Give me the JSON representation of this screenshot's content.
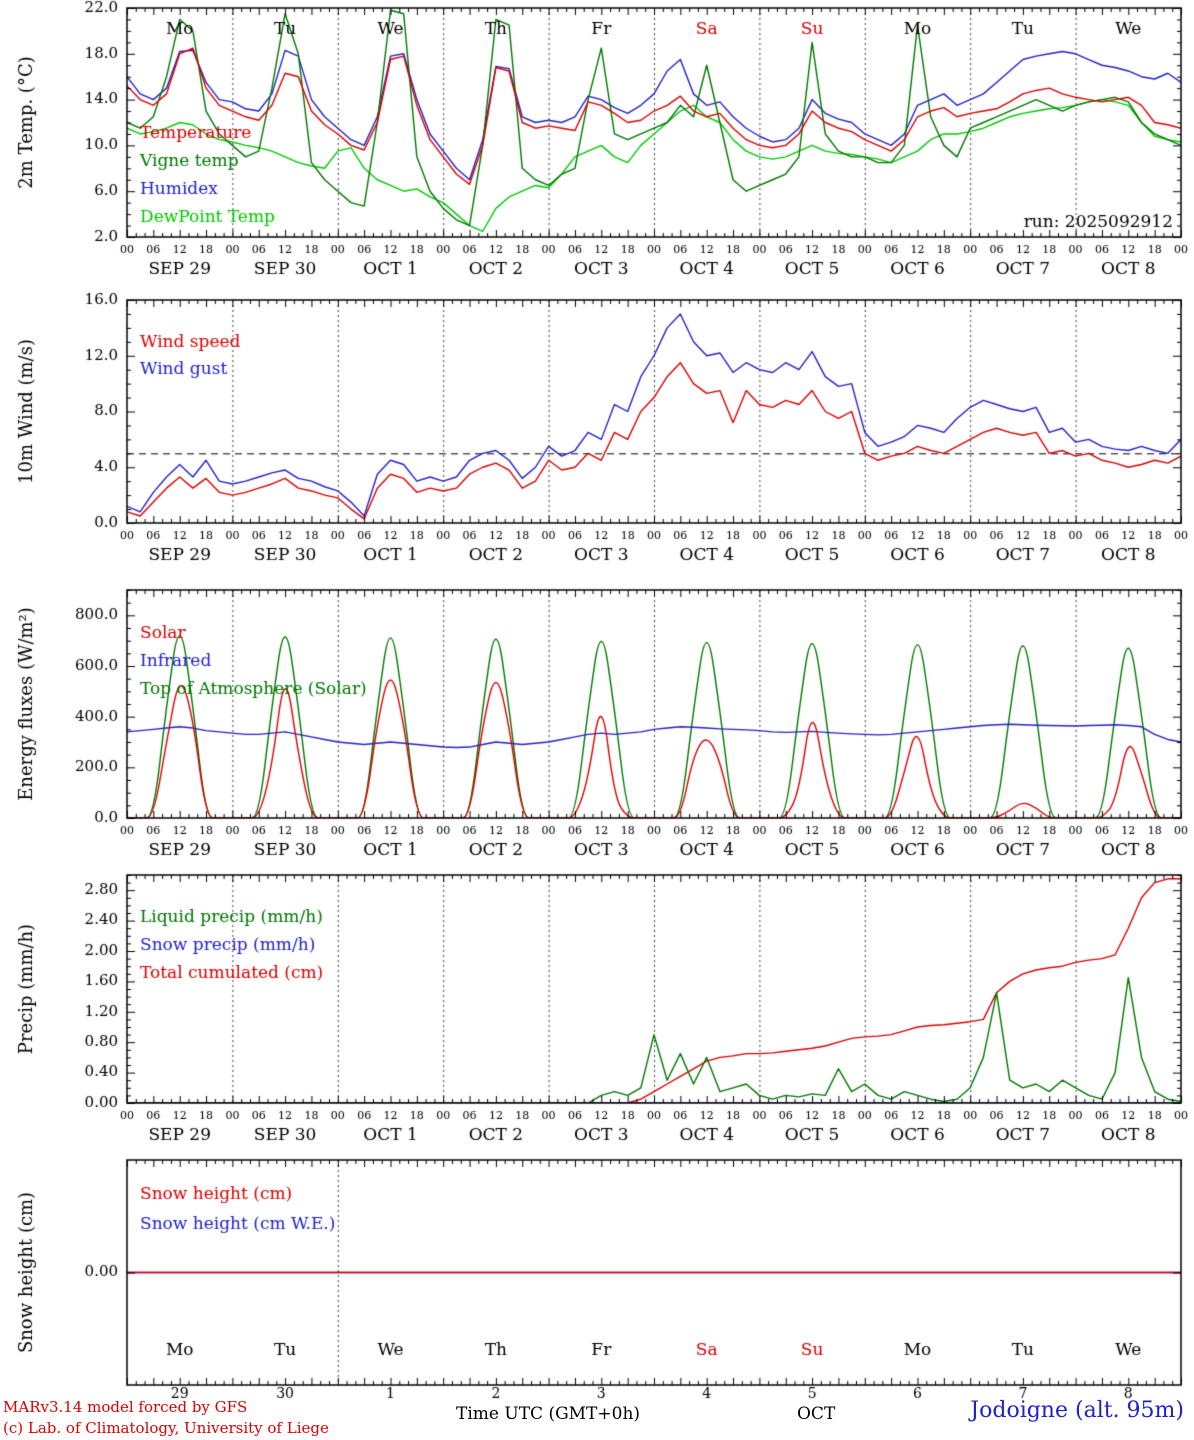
{
  "footer": {
    "model_line1": "MARv3.14 model forced by GFS",
    "model_line2": "(c) Lab. of Climatology, University of Liege",
    "time_axis_label": "Time UTC (GMT+0h)",
    "month_label": "OCT",
    "station_label": "Jodoigne (alt. 95m)"
  },
  "colors": {
    "red": "#dd0000",
    "blue": "#2222cc",
    "dark_green": "#007700",
    "light_green": "#00cc00",
    "black": "#000000",
    "weekend": "#dd0000"
  },
  "x_axis": {
    "step_hours": 3,
    "total_hours": 240,
    "hour_tick_interval": 6,
    "hour_labels": [
      "00",
      "06",
      "12",
      "18"
    ],
    "day_labels": [
      "SEP 29",
      "SEP 30",
      "OCT 1",
      "OCT 2",
      "OCT 3",
      "OCT 4",
      "OCT 5",
      "OCT 6",
      "OCT 7",
      "OCT 8"
    ],
    "day_names": [
      {
        "label": "Mo",
        "weekend": false
      },
      {
        "label": "Tu",
        "weekend": false
      },
      {
        "label": "We",
        "weekend": false
      },
      {
        "label": "Th",
        "weekend": false
      },
      {
        "label": "Fr",
        "weekend": false
      },
      {
        "label": "Sa",
        "weekend": true
      },
      {
        "label": "Su",
        "weekend": true
      },
      {
        "label": "Mo",
        "weekend": false
      },
      {
        "label": "Tu",
        "weekend": false
      },
      {
        "label": "We",
        "weekend": false
      }
    ],
    "day_numbers": [
      "29",
      "30",
      "1",
      "2",
      "3",
      "4",
      "5",
      "6",
      "7",
      "8"
    ]
  },
  "chart_data": [
    {
      "name": "temperature-panel",
      "type": "line",
      "ylabel": "2m Temp. (°C)",
      "ylim": [
        2,
        22
      ],
      "ytick_major": 4,
      "ytick_minor": 1,
      "ytick_decimals": 1,
      "day_gridlines": "all",
      "run_label": "run: 2025092912",
      "series": [
        {
          "name": "Temperature",
          "color": "#dd0000",
          "values": [
            15.2,
            14.0,
            13.5,
            14.5,
            18.0,
            18.5,
            15.0,
            13.5,
            13.0,
            12.5,
            12.2,
            13.5,
            16.3,
            16.0,
            13.0,
            11.8,
            11.0,
            10.0,
            9.6,
            12.0,
            17.5,
            17.8,
            13.5,
            10.5,
            9.0,
            7.5,
            6.6,
            10.0,
            16.8,
            16.5,
            12.0,
            11.5,
            11.7,
            11.5,
            11.3,
            13.8,
            13.5,
            12.8,
            12.0,
            12.2,
            13.0,
            13.5,
            14.3,
            13.0,
            12.5,
            12.8,
            11.5,
            10.5,
            10.0,
            9.8,
            10.0,
            11.0,
            13.0,
            12.0,
            11.5,
            11.2,
            10.5,
            10.0,
            9.5,
            10.5,
            12.5,
            13.0,
            13.3,
            12.5,
            12.8,
            13.0,
            13.2,
            13.8,
            14.5,
            14.8,
            15.0,
            14.5,
            14.2,
            14.0,
            13.8,
            14.0,
            14.2,
            13.5,
            12.0,
            11.8,
            11.5
          ]
        },
        {
          "name": "Vigne temp",
          "color": "#007700",
          "values": [
            12.0,
            11.5,
            12.5,
            16.0,
            21.0,
            20.0,
            13.0,
            11.0,
            10.0,
            9.0,
            9.5,
            15.0,
            21.5,
            18.0,
            8.5,
            7.0,
            6.0,
            5.0,
            4.7,
            12.0,
            21.8,
            21.5,
            9.0,
            6.0,
            4.5,
            3.5,
            3.0,
            10.0,
            21.0,
            20.5,
            8.0,
            7.0,
            6.5,
            7.5,
            8.0,
            14.0,
            18.5,
            11.0,
            10.5,
            11.0,
            11.5,
            12.0,
            13.5,
            12.5,
            17.0,
            12.0,
            7.0,
            6.0,
            6.5,
            7.0,
            7.5,
            9.0,
            19.0,
            11.0,
            9.5,
            9.0,
            9.0,
            8.5,
            8.5,
            10.0,
            20.5,
            12.5,
            10.0,
            9.0,
            11.5,
            12.0,
            12.5,
            13.0,
            13.5,
            14.0,
            13.5,
            13.0,
            13.5,
            13.8,
            14.0,
            14.2,
            13.8,
            12.0,
            11.0,
            10.5,
            10.0
          ]
        },
        {
          "name": "Humidex",
          "color": "#2222cc",
          "values": [
            16.0,
            14.5,
            14.0,
            15.0,
            18.2,
            18.3,
            15.5,
            14.0,
            13.8,
            13.2,
            13.0,
            14.5,
            18.3,
            17.8,
            14.0,
            12.5,
            11.5,
            10.5,
            10.0,
            12.5,
            17.8,
            18.0,
            14.0,
            11.0,
            9.5,
            8.0,
            7.0,
            10.5,
            16.9,
            16.7,
            12.5,
            12.0,
            12.2,
            12.0,
            12.5,
            14.3,
            14.0,
            13.3,
            12.8,
            13.5,
            14.5,
            16.5,
            17.5,
            14.5,
            13.5,
            13.8,
            12.5,
            11.5,
            10.8,
            10.3,
            10.5,
            11.5,
            14.0,
            12.8,
            12.3,
            12.0,
            11.0,
            10.5,
            10.0,
            11.0,
            13.5,
            14.0,
            14.5,
            13.5,
            14.0,
            14.5,
            15.5,
            16.5,
            17.5,
            17.8,
            18.0,
            18.2,
            18.0,
            17.5,
            17.0,
            16.8,
            16.5,
            16.0,
            15.8,
            16.3,
            15.5
          ]
        },
        {
          "name": "DewPoint Temp",
          "color": "#00cc00",
          "values": [
            11.5,
            11.0,
            11.2,
            11.5,
            12.0,
            11.8,
            11.0,
            10.5,
            10.3,
            10.0,
            9.8,
            9.5,
            9.0,
            8.5,
            8.2,
            8.0,
            9.5,
            9.8,
            8.0,
            7.0,
            6.5,
            6.0,
            6.2,
            5.5,
            5.0,
            4.0,
            3.0,
            2.5,
            4.5,
            5.5,
            6.0,
            6.5,
            6.3,
            7.5,
            9.0,
            9.5,
            10.0,
            9.0,
            8.5,
            10.0,
            11.0,
            12.0,
            13.0,
            13.5,
            12.5,
            12.0,
            10.5,
            9.5,
            9.0,
            8.8,
            9.0,
            9.5,
            10.0,
            9.5,
            9.3,
            9.2,
            9.0,
            8.8,
            8.5,
            9.0,
            9.5,
            10.5,
            11.0,
            11.0,
            11.2,
            11.5,
            12.0,
            12.5,
            12.8,
            13.0,
            13.2,
            13.3,
            13.5,
            13.8,
            14.0,
            13.8,
            13.5,
            12.0,
            10.8,
            10.5,
            10.3
          ]
        }
      ]
    },
    {
      "name": "wind-panel",
      "type": "line",
      "ylabel": "10m Wind (m/s)",
      "ylim": [
        0,
        16
      ],
      "ytick_major": 4,
      "ytick_minor": 1,
      "ytick_decimals": 1,
      "day_gridlines": "all",
      "hline": 5.0,
      "series": [
        {
          "name": "Wind speed",
          "color": "#dd0000",
          "values": [
            0.8,
            0.5,
            1.5,
            2.5,
            3.3,
            2.5,
            3.2,
            2.2,
            2.0,
            2.2,
            2.5,
            2.8,
            3.2,
            2.5,
            2.3,
            2.0,
            1.8,
            1.0,
            0.3,
            2.5,
            3.5,
            3.2,
            2.2,
            2.5,
            2.3,
            2.5,
            3.5,
            4.0,
            4.3,
            3.8,
            2.5,
            3.0,
            4.5,
            3.8,
            4.0,
            5.0,
            4.5,
            6.5,
            6.0,
            8.0,
            9.0,
            10.5,
            11.5,
            10.0,
            9.3,
            9.5,
            7.2,
            9.5,
            8.5,
            8.3,
            8.8,
            8.5,
            9.5,
            8.0,
            7.5,
            8.0,
            5.0,
            4.5,
            4.8,
            5.0,
            5.5,
            5.2,
            5.0,
            5.5,
            6.0,
            6.5,
            6.8,
            6.5,
            6.3,
            6.5,
            5.0,
            5.2,
            4.8,
            5.0,
            4.5,
            4.3,
            4.0,
            4.2,
            4.5,
            4.3,
            4.8
          ]
        },
        {
          "name": "Wind gust",
          "color": "#2222cc",
          "values": [
            1.2,
            0.8,
            2.2,
            3.3,
            4.2,
            3.3,
            4.5,
            3.0,
            2.8,
            3.0,
            3.3,
            3.6,
            3.8,
            3.2,
            3.0,
            2.6,
            2.3,
            1.5,
            0.5,
            3.5,
            4.5,
            4.2,
            3.0,
            3.3,
            3.0,
            3.3,
            4.5,
            5.0,
            5.2,
            4.5,
            3.2,
            4.0,
            5.5,
            4.8,
            5.2,
            6.5,
            6.0,
            8.5,
            8.0,
            10.5,
            12.0,
            14.0,
            15.0,
            13.0,
            12.0,
            12.2,
            10.8,
            11.5,
            11.0,
            10.8,
            11.5,
            11.0,
            12.3,
            10.5,
            9.8,
            10.0,
            6.5,
            5.5,
            5.8,
            6.2,
            7.0,
            6.8,
            6.5,
            7.5,
            8.3,
            8.8,
            8.5,
            8.2,
            8.0,
            8.3,
            6.5,
            6.8,
            5.8,
            6.0,
            5.5,
            5.3,
            5.2,
            5.5,
            5.2,
            5.0,
            6.0
          ]
        }
      ]
    },
    {
      "name": "energy-panel",
      "type": "line",
      "ylabel": "Energy fluxes (W/m²)",
      "ylim": [
        0,
        900
      ],
      "ytick_major": 200,
      "ytick_minor": 50,
      "ytick_decimals": 1,
      "day_gridlines": "all",
      "series": [
        {
          "name": "Solar",
          "color": "#dd0000",
          "smooth": true,
          "values": [
            0,
            0,
            0,
            300,
            575,
            400,
            0,
            0,
            0,
            0,
            0,
            200,
            605,
            250,
            0,
            0,
            0,
            0,
            0,
            380,
            600,
            380,
            0,
            0,
            0,
            0,
            0,
            370,
            590,
            370,
            0,
            0,
            0,
            0,
            0,
            150,
            495,
            80,
            0,
            0,
            0,
            0,
            0,
            250,
            330,
            230,
            0,
            0,
            0,
            0,
            0,
            100,
            460,
            150,
            0,
            0,
            0,
            0,
            0,
            180,
            380,
            100,
            0,
            0,
            0,
            0,
            0,
            30,
            65,
            40,
            0,
            0,
            0,
            0,
            0,
            60,
            330,
            180,
            0,
            0,
            0
          ]
        },
        {
          "name": "Infrared",
          "color": "#2222cc",
          "values": [
            340,
            345,
            350,
            355,
            360,
            355,
            345,
            340,
            335,
            330,
            330,
            335,
            340,
            330,
            320,
            310,
            300,
            295,
            290,
            295,
            300,
            295,
            290,
            285,
            280,
            278,
            280,
            290,
            300,
            295,
            290,
            295,
            300,
            310,
            320,
            330,
            335,
            330,
            335,
            340,
            350,
            355,
            360,
            358,
            355,
            352,
            350,
            348,
            345,
            340,
            338,
            340,
            342,
            338,
            335,
            332,
            330,
            328,
            330,
            335,
            340,
            345,
            350,
            355,
            360,
            365,
            368,
            370,
            368,
            366,
            365,
            364,
            363,
            365,
            366,
            368,
            365,
            360,
            330,
            310,
            300
          ]
        },
        {
          "name": "Top of Atmosphere (Solar)",
          "color": "#007700",
          "smooth": true,
          "values": [
            0,
            0,
            0,
            445,
            810,
            445,
            0,
            0,
            0,
            0,
            0,
            443,
            805,
            443,
            0,
            0,
            0,
            0,
            0,
            440,
            800,
            440,
            0,
            0,
            0,
            0,
            0,
            437,
            795,
            437,
            0,
            0,
            0,
            0,
            0,
            432,
            785,
            432,
            0,
            0,
            0,
            0,
            0,
            429,
            780,
            429,
            0,
            0,
            0,
            0,
            0,
            426,
            775,
            426,
            0,
            0,
            0,
            0,
            0,
            424,
            770,
            424,
            0,
            0,
            0,
            0,
            0,
            421,
            765,
            421,
            0,
            0,
            0,
            0,
            0,
            415,
            755,
            415,
            0,
            0,
            0
          ]
        }
      ]
    },
    {
      "name": "precip-panel",
      "type": "line",
      "ylabel": "Precip (mm/h)",
      "ylim": [
        0,
        3.0
      ],
      "ytick_major": 0.4,
      "ytick_minor": 0.1,
      "ytick_decimals": 2,
      "day_gridlines": "all",
      "series": [
        {
          "name": "Liquid precip (mm/h)",
          "color": "#007700",
          "values": [
            0,
            0,
            0,
            0,
            0,
            0,
            0,
            0,
            0,
            0,
            0,
            0,
            0,
            0,
            0,
            0,
            0,
            0,
            0,
            0,
            0,
            0,
            0,
            0,
            0,
            0,
            0,
            0,
            0,
            0,
            0,
            0,
            0,
            0,
            0,
            0,
            0.1,
            0.15,
            0.1,
            0.2,
            0.9,
            0.3,
            0.65,
            0.25,
            0.6,
            0.15,
            0.2,
            0.25,
            0.1,
            0.05,
            0.1,
            0.08,
            0.12,
            0.1,
            0.45,
            0.15,
            0.25,
            0.1,
            0.05,
            0.15,
            0.1,
            0.05,
            0.02,
            0.05,
            0.2,
            0.6,
            1.45,
            0.3,
            0.2,
            0.25,
            0.15,
            0.3,
            0.2,
            0.1,
            0.05,
            0.4,
            1.65,
            0.6,
            0.15,
            0.05,
            0.02
          ]
        },
        {
          "name": "Snow precip (mm/h)",
          "color": "#2222cc",
          "constant": 0
        },
        {
          "name": "Total cumulated (cm)",
          "color": "#dd0000",
          "values": [
            0,
            0,
            0,
            0,
            0,
            0,
            0,
            0,
            0,
            0,
            0,
            0,
            0,
            0,
            0,
            0,
            0,
            0,
            0,
            0,
            0,
            0,
            0,
            0,
            0,
            0,
            0,
            0,
            0,
            0,
            0,
            0,
            0,
            0,
            0,
            0,
            0,
            0,
            0,
            0.05,
            0.15,
            0.25,
            0.35,
            0.45,
            0.55,
            0.6,
            0.62,
            0.65,
            0.65,
            0.66,
            0.68,
            0.7,
            0.72,
            0.75,
            0.8,
            0.85,
            0.87,
            0.88,
            0.9,
            0.95,
            1.0,
            1.02,
            1.03,
            1.05,
            1.07,
            1.1,
            1.45,
            1.6,
            1.7,
            1.75,
            1.78,
            1.8,
            1.85,
            1.88,
            1.9,
            1.95,
            2.3,
            2.7,
            2.9,
            2.95,
            2.95
          ]
        }
      ]
    },
    {
      "name": "snow-panel",
      "type": "line",
      "ylabel": "Snow height (cm)",
      "ylim": [
        -1,
        1
      ],
      "ytick_values": [
        0
      ],
      "ytick_decimals": 2,
      "day_gridlines": "oct1_only",
      "series": [
        {
          "name": "Snow height (cm)",
          "color": "#dd0000",
          "constant": 0
        },
        {
          "name": "Snow height (cm W.E.)",
          "color": "#2222cc",
          "constant": 0
        }
      ]
    }
  ]
}
